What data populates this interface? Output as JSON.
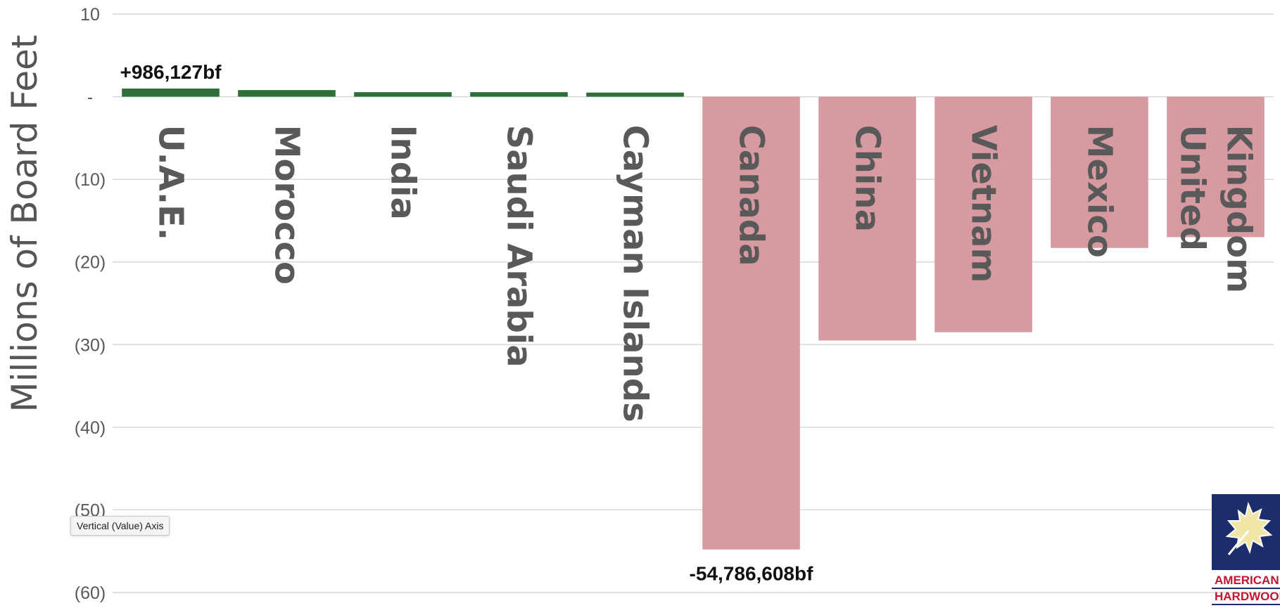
{
  "chart_data": {
    "type": "bar",
    "ylabel": "Millions of Board Feet",
    "ylim": [
      -60,
      10
    ],
    "yticks": [
      {
        "value": 10,
        "label": "10"
      },
      {
        "value": 0,
        "label": "-"
      },
      {
        "value": -10,
        "label": "(10)"
      },
      {
        "value": -20,
        "label": "(20)"
      },
      {
        "value": -30,
        "label": "(30)"
      },
      {
        "value": -40,
        "label": "(40)"
      },
      {
        "value": -50,
        "label": "(50)"
      },
      {
        "value": -60,
        "label": "(60)"
      }
    ],
    "grid": true,
    "categories": [
      "U.A.E.",
      "Morocco",
      "India",
      "Saudi Arabia",
      "Cayman Islands",
      "Canada",
      "China",
      "Vietnam",
      "Mexico",
      "United Kingdom"
    ],
    "category_label_lines": [
      [
        "U.A.E."
      ],
      [
        "Morocco"
      ],
      [
        "India"
      ],
      [
        "Saudi Arabia"
      ],
      [
        "Cayman Islands"
      ],
      [
        "Canada"
      ],
      [
        "China"
      ],
      [
        "Vietnam"
      ],
      [
        "Mexico"
      ],
      [
        "United",
        "Kingdom"
      ]
    ],
    "values": [
      0.986127,
      0.8,
      0.55,
      0.55,
      0.5,
      -54.786608,
      -29.5,
      -28.5,
      -18.3,
      -17.0
    ],
    "colors": {
      "positive": "#2d6e3a",
      "negative": "#d89aa1"
    },
    "annotations": [
      {
        "category": "U.A.E.",
        "text": "+986,127bf",
        "position": "above"
      },
      {
        "category": "Canada",
        "text": "-54,786,608bf",
        "position": "below"
      }
    ]
  },
  "tooltip": {
    "text": "Vertical (Value) Axis"
  },
  "logo": {
    "line1": "AMERICAN",
    "line2": "HARDWOOD",
    "colors": {
      "navy": "#1b2d6b",
      "red": "#c4122f"
    }
  }
}
